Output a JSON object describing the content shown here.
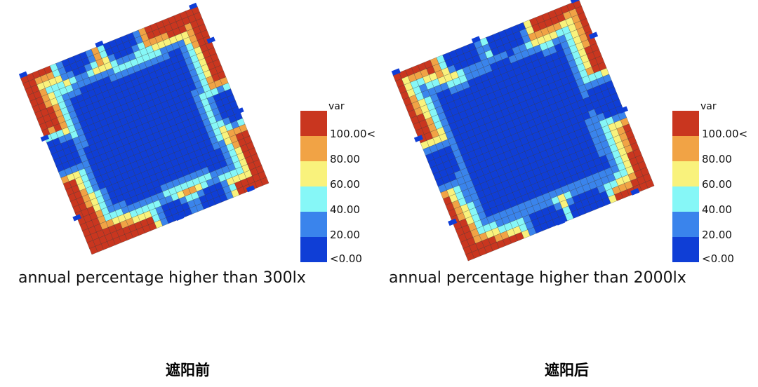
{
  "colors": {
    "deep_blue": "#0f3ed6",
    "blue": "#3a84ec",
    "cyan": "#86f7f7",
    "yellow": "#f9f27c",
    "orange": "#f1a345",
    "red": "#c9361f",
    "grid_line": "#2a2a2a"
  },
  "chart_data": [
    {
      "type": "heatmap",
      "caption": "annual percentage higher than 300lx",
      "subtitle": "遮阳前",
      "legend": {
        "title": "var",
        "labels": [
          "100.00<",
          "80.00",
          "60.00",
          "40.00",
          "20.00",
          "<0.00"
        ],
        "colors": [
          "#c9361f",
          "#f1a345",
          "#f9f27c",
          "#86f7f7",
          "#3a84ec",
          "#0f3ed6"
        ]
      }
    },
    {
      "type": "heatmap",
      "caption": "annual percentage higher than 2000lx",
      "subtitle": "遮阳后",
      "legend": {
        "title": "var",
        "labels": [
          "100.00<",
          "80.00",
          "60.00",
          "40.00",
          "20.00",
          "<0.00"
        ],
        "colors": [
          "#c9361f",
          "#f1a345",
          "#f9f27c",
          "#86f7f7",
          "#3a84ec",
          "#0f3ed6"
        ]
      }
    }
  ]
}
